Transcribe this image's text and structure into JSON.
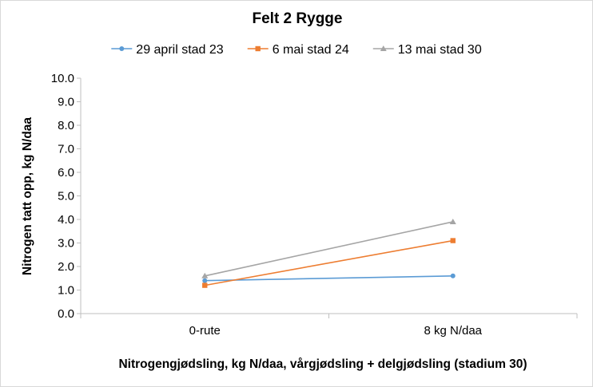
{
  "chart_data": {
    "type": "line",
    "title": "Felt 2 Rygge",
    "xlabel": "Nitrogengjødsling, kg N/daa, vårgjødsling + delgjødsling (stadium 30)",
    "ylabel": "Nitrogen tatt opp, kg N/daa",
    "categories": [
      "0-rute",
      "8 kg N/daa"
    ],
    "ylim": [
      0,
      10
    ],
    "ytick_step": 1,
    "ytick_labels": [
      "0.0",
      "1.0",
      "2.0",
      "3.0",
      "4.0",
      "5.0",
      "6.0",
      "7.0",
      "8.0",
      "9.0",
      "10.0"
    ],
    "grid": false,
    "legend_position": "top",
    "series": [
      {
        "name": "29 april stad 23",
        "values": [
          1.4,
          1.6
        ],
        "color": "#5b9bd5",
        "marker": "circle"
      },
      {
        "name": "6 mai stad 24",
        "values": [
          1.2,
          3.1
        ],
        "color": "#ed7d31",
        "marker": "square"
      },
      {
        "name": "13 mai stad 30",
        "values": [
          1.6,
          3.9
        ],
        "color": "#a5a5a5",
        "marker": "triangle"
      }
    ]
  }
}
